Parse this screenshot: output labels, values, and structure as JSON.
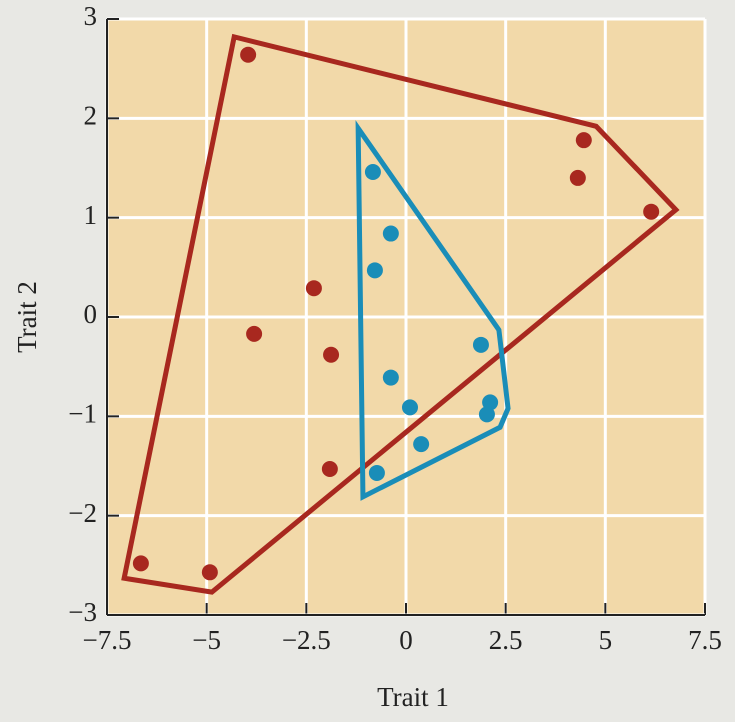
{
  "chart_data": {
    "type": "scatter",
    "x_label": "Trait 1",
    "y_label": "Trait 2",
    "xlim": [
      -7.5,
      7.5
    ],
    "ylim": [
      -3,
      3
    ],
    "xticks": [
      {
        "value": -7.5,
        "label": "−7.5"
      },
      {
        "value": -5,
        "label": "−5"
      },
      {
        "value": -2.5,
        "label": "−2.5"
      },
      0,
      2.5,
      5,
      7.5
    ],
    "yticks": [
      {
        "value": -3,
        "label": "−3"
      },
      {
        "value": -2,
        "label": "−2"
      },
      {
        "value": -1,
        "label": "−1"
      },
      0,
      1,
      2,
      3
    ],
    "grid": true,
    "series": [
      {
        "color": "#a8281f",
        "x": [
          -3.96,
          4.46,
          4.31,
          6.15,
          -2.31,
          -3.81,
          -1.88,
          -1.91,
          -6.65,
          -4.92
        ],
        "y": [
          2.64,
          1.78,
          1.4,
          1.06,
          0.29,
          -0.17,
          -0.38,
          -1.53,
          -2.48,
          -2.57
        ]
      },
      {
        "color": "#1a8db8",
        "x": [
          -0.83,
          -0.38,
          -0.78,
          1.88,
          -0.38,
          0.1,
          2.11,
          2.03,
          0.38,
          -0.73
        ],
        "y": [
          1.46,
          0.84,
          0.47,
          -0.28,
          -0.61,
          -0.91,
          -0.86,
          -0.98,
          -1.28,
          -1.57
        ]
      }
    ],
    "hulls": [
      {
        "color": "#a8281f",
        "x": [
          -4.31,
          4.77,
          6.77,
          -4.87,
          -7.07
        ],
        "y": [
          2.82,
          1.92,
          1.08,
          -2.77,
          -2.63
        ]
      },
      {
        "color": "#1a8db8",
        "x": [
          -1.2,
          2.33,
          2.56,
          2.36,
          -1.08
        ],
        "y": [
          1.9,
          -0.13,
          -0.92,
          -1.11,
          -1.81
        ]
      }
    ]
  }
}
